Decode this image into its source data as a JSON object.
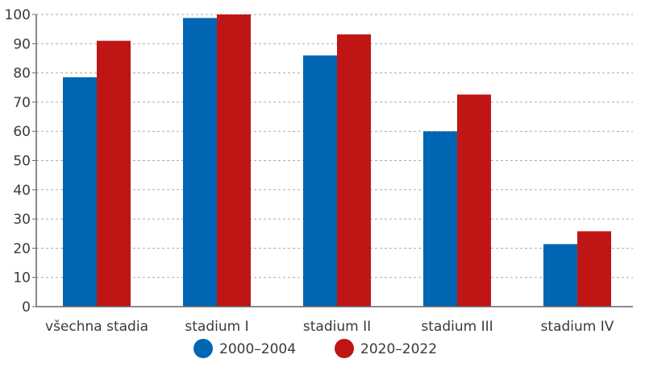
{
  "chart_data": {
    "type": "bar",
    "title": "",
    "xlabel": "",
    "ylabel": "",
    "ylim": [
      0,
      100
    ],
    "yticks": [
      0,
      10,
      20,
      30,
      40,
      50,
      60,
      70,
      80,
      90,
      100
    ],
    "grid": true,
    "legend_position": "bottom",
    "categories": [
      "všechna stadia",
      "stadium I",
      "stadium II",
      "stadium III",
      "stadium IV"
    ],
    "series": [
      {
        "name": "2000–2004",
        "color": "#0066b3",
        "values": [
          78.5,
          98.8,
          86.0,
          60.0,
          21.4
        ]
      },
      {
        "name": "2020–2022",
        "color": "#bf1515",
        "values": [
          91.0,
          100.0,
          93.2,
          72.6,
          25.8
        ]
      }
    ]
  }
}
